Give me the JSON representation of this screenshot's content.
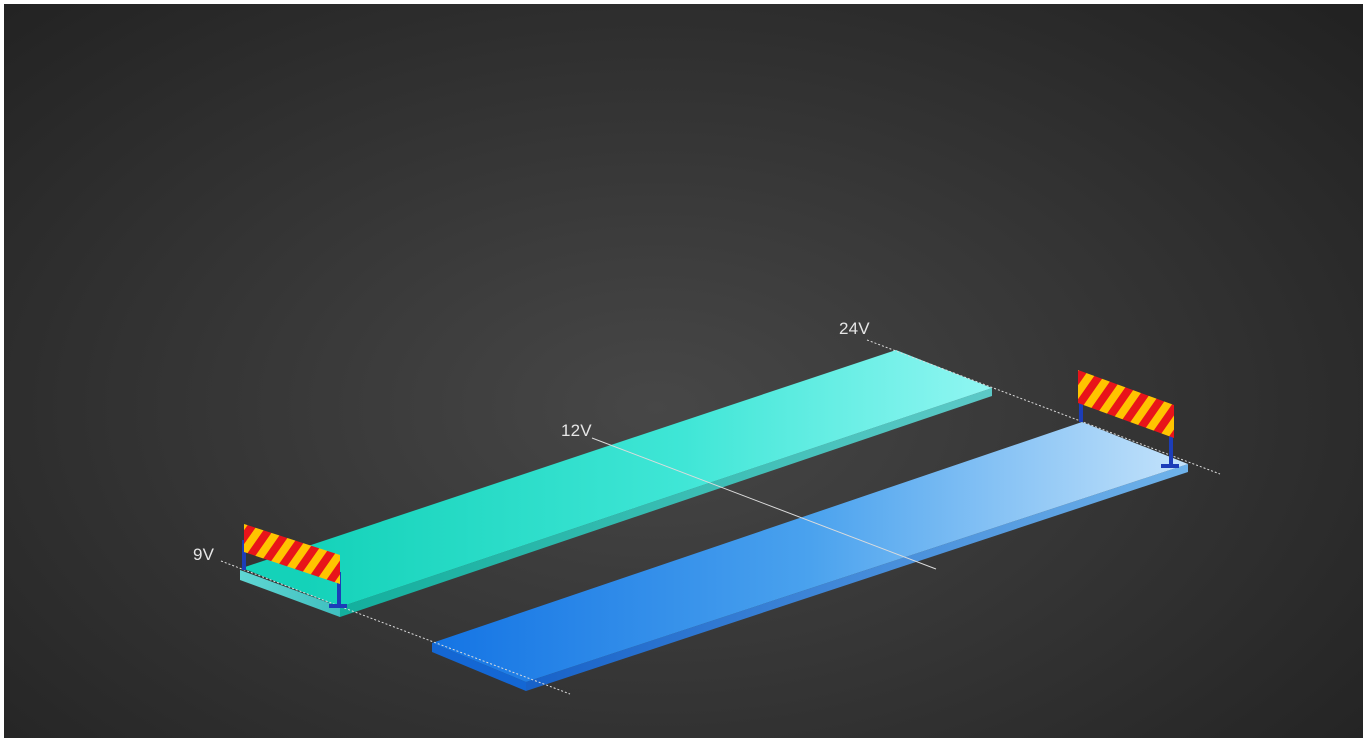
{
  "labels": {
    "label_9v": "9V",
    "label_12v": "12V",
    "label_24v": "24V"
  },
  "colors": {
    "background_center": "#474747",
    "background_edge": "#1f1f1f",
    "strip_teal_start": "#19d6be",
    "strip_teal_end": "#8ef5f0",
    "strip_blue_start": "#1677e6",
    "strip_blue_end": "#bfe0fb",
    "barrier_red": "#e8141a",
    "barrier_yellow": "#ffc400",
    "barrier_post": "#1c3db8",
    "guide_line": "#dcdcdc"
  },
  "icons": [
    "striped-road-barrier-icon"
  ]
}
